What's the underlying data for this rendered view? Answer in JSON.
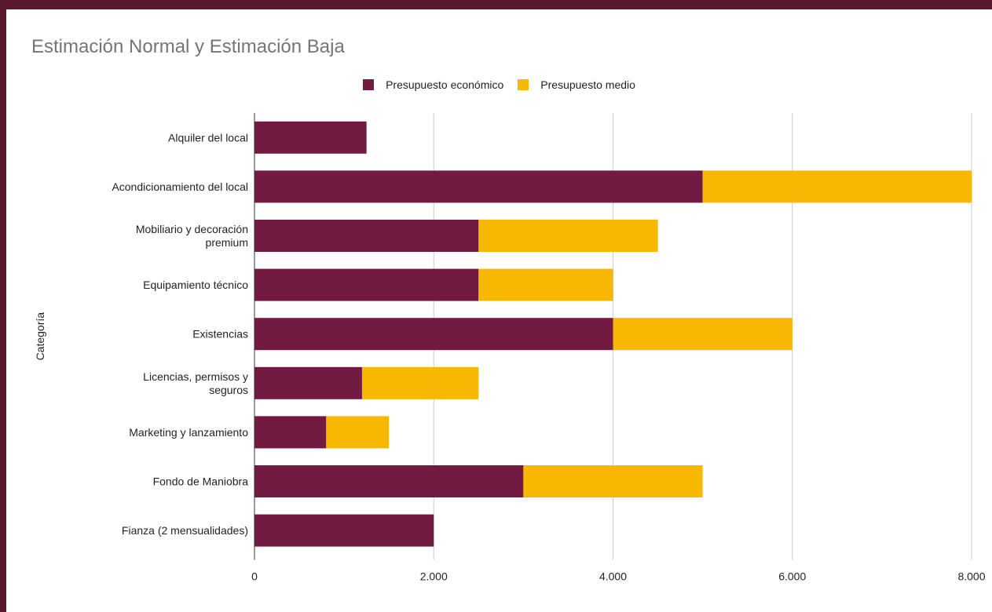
{
  "colors": {
    "series_economico": "#721a41",
    "series_medio": "#f7b703",
    "gridline": "#cccccc",
    "axis": "#333333"
  },
  "chart_data": {
    "type": "bar",
    "orientation": "horizontal",
    "stacked": true,
    "title": "Estimación Normal y Estimación Baja",
    "ylabel": "Categoría",
    "xlabel": "",
    "legend_position": "top",
    "grid": true,
    "xlim": [
      0,
      8000
    ],
    "xticks": [
      0,
      2000,
      4000,
      6000,
      8000
    ],
    "xtick_labels": [
      "0",
      "2.000",
      "4.000",
      "6.000",
      "8.000"
    ],
    "categories": [
      [
        "Alquiler del local"
      ],
      [
        "Acondicionamiento del local"
      ],
      [
        "Mobiliario y decoración",
        "premium"
      ],
      [
        "Equipamiento técnico"
      ],
      [
        "Existencias"
      ],
      [
        "Licencias, permisos y",
        "seguros"
      ],
      [
        "Marketing y lanzamiento"
      ],
      [
        "Fondo de Maniobra"
      ],
      [
        "Fianza (2 mensualidades)"
      ]
    ],
    "series": [
      {
        "name": "Presupuesto económico",
        "values": [
          1250,
          5000,
          2500,
          2500,
          4000,
          1200,
          800,
          3000,
          2000
        ]
      },
      {
        "name": "Presupuesto medio",
        "values": [
          0,
          3000,
          2000,
          1500,
          2000,
          1300,
          700,
          2000,
          0
        ]
      }
    ]
  }
}
